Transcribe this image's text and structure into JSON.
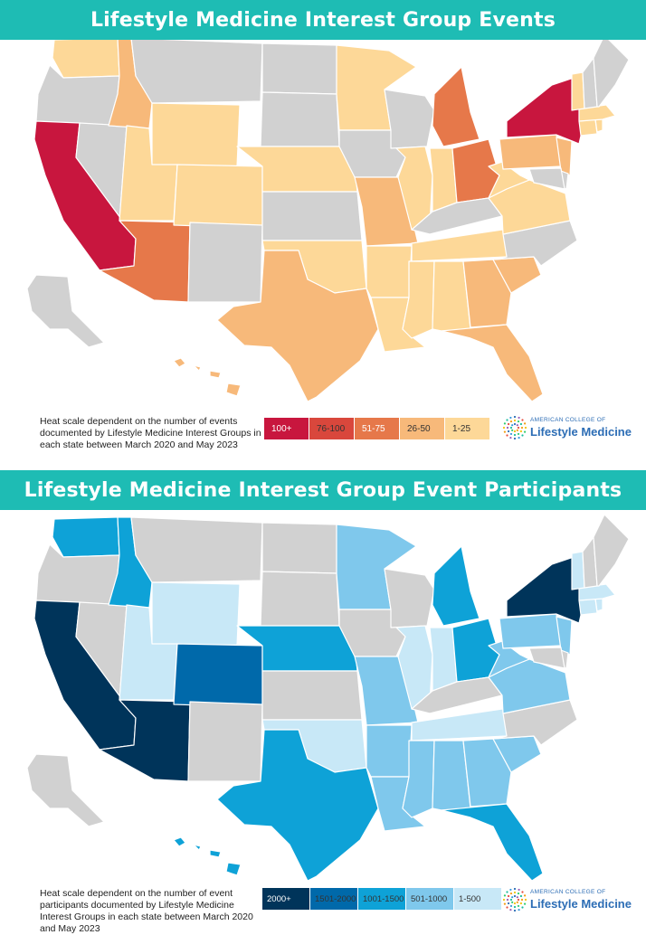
{
  "top": {
    "title": "Lifestyle Medicine Interest Group Events",
    "caption": "Heat scale dependent on the number of events documented by Lifestyle Medicine Interest Groups in each state between March 2020 and May 2023",
    "legend": [
      {
        "label": "100+",
        "color": "#c8163e",
        "text": "#ffffff"
      },
      {
        "label": "76-100",
        "color": "#d9473c",
        "text": "#333333"
      },
      {
        "label": "51-75",
        "color": "#e6784a",
        "text": "#ffffff"
      },
      {
        "label": "26-50",
        "color": "#f7b97a",
        "text": "#333333"
      },
      {
        "label": "1-25",
        "color": "#fdd898",
        "text": "#333333"
      }
    ]
  },
  "bottom": {
    "title": "Lifestyle Medicine Interest Group Event Participants",
    "caption": "Heat scale dependent on the number of event participants documented by Lifestyle Medicine Interest Groups in each state between March 2020 and May 2023",
    "legend": [
      {
        "label": "2000+",
        "color": "#00345a",
        "text": "#ffffff"
      },
      {
        "label": "1501-2000",
        "color": "#0069aa",
        "text": "#333333"
      },
      {
        "label": "1001-1500",
        "color": "#0ea2d7",
        "text": "#333333"
      },
      {
        "label": "501-1000",
        "color": "#7fc8ec",
        "text": "#333333"
      },
      {
        "label": "1-500",
        "color": "#c8e8f7",
        "text": "#333333"
      }
    ]
  },
  "logo": {
    "small": "AMERICAN COLLEGE OF",
    "big": "Lifestyle Medicine"
  },
  "no_data_color": "#d1d1d1",
  "states_events": {
    "CA": "100+",
    "NY": "100+",
    "NJ": "26-50",
    "CT": "1-25",
    "RI": "1-25",
    "MA": "1-25",
    "VT": "1-25",
    "AZ": "51-75",
    "MI": "51-75",
    "OH": "51-75",
    "ID": "26-50",
    "MO": "26-50",
    "TX": "26-50",
    "PA": "26-50",
    "GA": "26-50",
    "SC": "26-50",
    "FL": "26-50",
    "HI": "26-50",
    "WA": "1-25",
    "UT": "1-25",
    "WY": "1-25",
    "CO": "1-25",
    "NE": "1-25",
    "MN": "1-25",
    "IL": "1-25",
    "IN": "1-25",
    "OK": "1-25",
    "AR": "1-25",
    "LA": "1-25",
    "MS": "1-25",
    "AL": "1-25",
    "TN": "1-25",
    "WV": "1-25",
    "VA": "1-25"
  },
  "states_participants": {
    "CA": "2000+",
    "AZ": "2000+",
    "NY": "2000+",
    "NJ": "501-1000",
    "CO": "1501-2000",
    "WA": "1001-1500",
    "ID": "1001-1500",
    "NE": "1001-1500",
    "TX": "1001-1500",
    "MI": "1001-1500",
    "OH": "1001-1500",
    "FL": "1001-1500",
    "HI": "1001-1500",
    "MO": "501-1000",
    "AR": "501-1000",
    "LA": "501-1000",
    "MS": "501-1000",
    "AL": "501-1000",
    "GA": "501-1000",
    "SC": "501-1000",
    "PA": "501-1000",
    "WV": "501-1000",
    "VA": "501-1000",
    "UT": "1-500",
    "WY": "1-500",
    "OK": "1-500",
    "MN": "501-1000",
    "IL": "1-500",
    "IN": "1-500",
    "TN": "1-500",
    "VT": "1-500",
    "MA": "1-500",
    "CT": "1-500",
    "RI": "1-500"
  }
}
